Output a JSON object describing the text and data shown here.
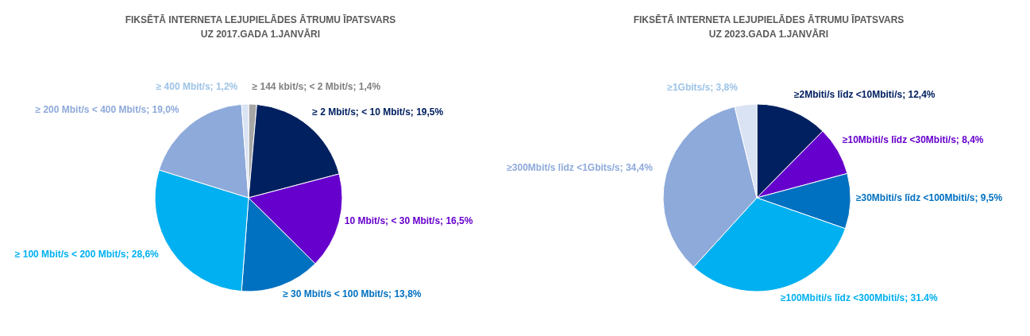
{
  "chart_data": [
    {
      "type": "pie",
      "title": "FIKSĒTĀ INTERNETA LEJUPIELĀDES ĀTRUMU ĪPATSVARS",
      "subtitle": "UZ 2017.GADA 1.JANVĀRI",
      "categories": [
        "≥ 144 kbit/s; < 2 Mbit/s",
        "≥ 2 Mbit/s; < 10 Mbit/s",
        "10 Mbit/s; < 30 Mbit/s",
        "≥ 30 Mbit/s < 100 Mbit/s",
        "≥ 100 Mbit/s < 200 Mbit/s",
        "≥ 200 Mbit/s < 400 Mbit/s",
        "≥ 400 Mbit/s"
      ],
      "values": [
        1.4,
        19.5,
        16.5,
        13.8,
        28.6,
        19.0,
        1.2
      ],
      "value_labels": [
        "1,4%",
        "19,5%",
        "16,5%",
        "13,8%",
        "28,6%",
        "19,0%",
        "1,2%"
      ],
      "colors": [
        "#a6a6a6",
        "#002060",
        "#6600cc",
        "#0070c0",
        "#00b0f0",
        "#8eaadb",
        "#dae3f3"
      ]
    },
    {
      "type": "pie",
      "title": "FIKSĒTĀ INTERNETA LEJUPIELĀDES ĀTRUMU ĪPATSVARS",
      "subtitle": "UZ 2023.GADA 1.JANVĀRI",
      "categories": [
        "≥2Mbiti/s līdz <10Mbiti/s",
        "≥10Mbiti/s līdz <30Mbiti/s",
        "≥30Mbiti/s līdz <100Mbiti/s",
        "≥100Mbiti/s līdz <300Mbiti/s",
        "≥300Mbit/s līdz <1Gbits/s",
        "≥1Gbits/s"
      ],
      "values": [
        12.4,
        8.4,
        9.5,
        31.4,
        34.4,
        3.8
      ],
      "value_labels": [
        "12,4%",
        "8,4%",
        "9,5%",
        "31.4%",
        "34,4%",
        "3,8%"
      ],
      "colors": [
        "#002060",
        "#6600cc",
        "#0070c0",
        "#00b0f0",
        "#8eaadb",
        "#dae3f3"
      ]
    }
  ]
}
